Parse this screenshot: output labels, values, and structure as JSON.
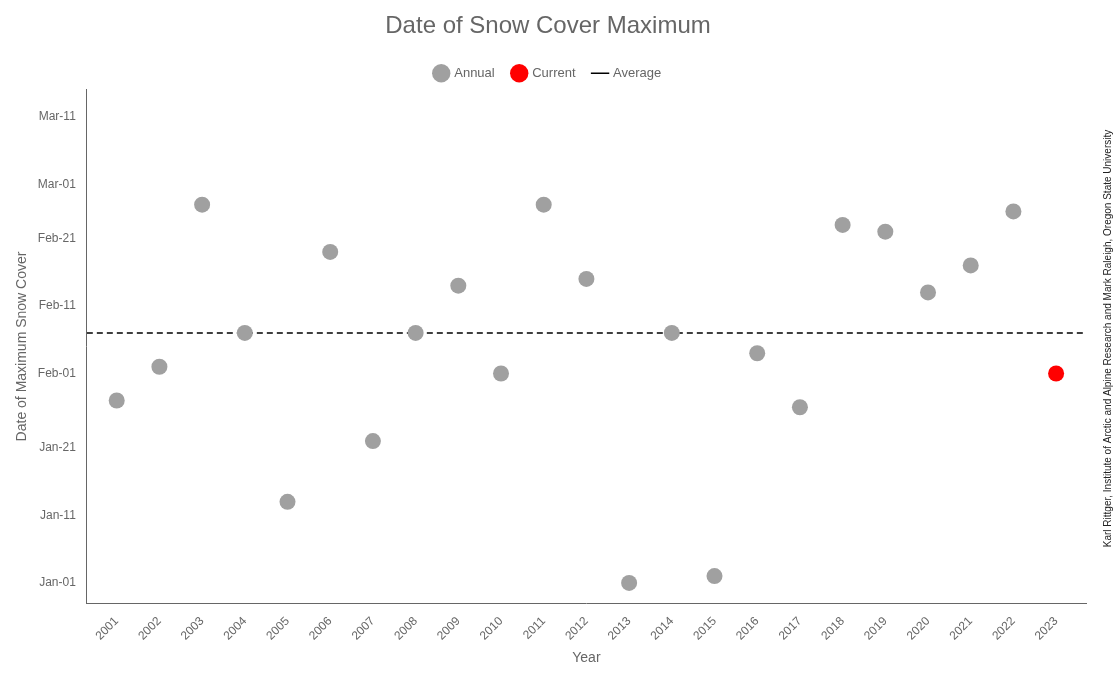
{
  "chart_data": {
    "type": "scatter",
    "title": "Date of Snow Cover Maximum",
    "xlabel": "Year",
    "ylabel": "Date of Maximum Snow Cover",
    "series": [
      {
        "name": "Annual",
        "color": "#a0a0a0",
        "marker": "circle",
        "x": [
          2001,
          2002,
          2003,
          2004,
          2005,
          2006,
          2007,
          2008,
          2009,
          2010,
          2011,
          2012,
          2013,
          2014,
          2015,
          2016,
          2017,
          2018,
          2019,
          2020,
          2021,
          2022
        ],
        "values": [
          28,
          33,
          57,
          38,
          13,
          50,
          22,
          38,
          45,
          32,
          57,
          46,
          1,
          38,
          2,
          35,
          27,
          54,
          53,
          44,
          48,
          56
        ]
      },
      {
        "name": "Current",
        "color": "#ff0000",
        "marker": "circle",
        "x": [
          2023
        ],
        "values": [
          32
        ]
      },
      {
        "name": "Average",
        "type": "hline",
        "color": "#000000",
        "line_style": "dashed",
        "values": [
          38
        ]
      }
    ],
    "xlim": [
      2000.3,
      2023.7
    ],
    "xticks": [
      2001,
      2002,
      2003,
      2004,
      2005,
      2006,
      2007,
      2008,
      2009,
      2010,
      2011,
      2012,
      2013,
      2014,
      2015,
      2016,
      2017,
      2018,
      2019,
      2020,
      2021,
      2022,
      2023
    ],
    "ylim": [
      -2,
      74
    ],
    "yticks": [
      {
        "value": 1,
        "label": "Jan-01"
      },
      {
        "value": 11,
        "label": "Jan-11"
      },
      {
        "value": 21,
        "label": "Jan-21"
      },
      {
        "value": 32,
        "label": "Feb-01"
      },
      {
        "value": 42,
        "label": "Feb-11"
      },
      {
        "value": 52,
        "label": "Feb-21"
      },
      {
        "value": 60,
        "label": "Mar-01"
      },
      {
        "value": 70,
        "label": "Mar-11"
      }
    ],
    "grid": false,
    "legend": "top",
    "annotations": [
      "Karl Rittger, Institute of Arctic and Alpine Research and Mark Raleigh, Oregon State University"
    ]
  }
}
